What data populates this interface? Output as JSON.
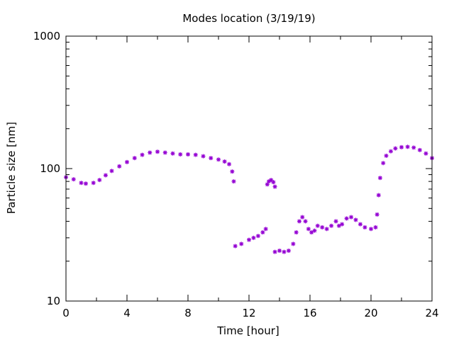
{
  "chart_data": {
    "type": "scatter",
    "title": "Modes location (3/19/19)",
    "xlabel": "Time [hour]",
    "ylabel": "Particle size [nm]",
    "xlim": [
      0,
      24
    ],
    "ylim": [
      10,
      1000
    ],
    "yscale": "log",
    "grid": false,
    "legend": "none",
    "x_ticks": [
      0,
      4,
      8,
      12,
      16,
      20,
      24
    ],
    "x_tick_labels": [
      "0",
      "4",
      "8",
      "12",
      "16",
      "20",
      "24"
    ],
    "y_ticks": [
      10,
      100,
      1000
    ],
    "y_tick_labels": [
      "10",
      "100",
      "1000"
    ],
    "marker": "asterisk",
    "color": "#9400D3",
    "series": [
      {
        "x": [
          0.0,
          0.5,
          1.0,
          1.3,
          1.8,
          2.2,
          2.6,
          3.0,
          3.5,
          4.0,
          4.5,
          5.0,
          5.5,
          6.0,
          6.5,
          7.0,
          7.5,
          8.0,
          8.5,
          9.0,
          9.5,
          10.0,
          10.4,
          10.7,
          10.9,
          11.0
        ],
        "y": [
          86,
          83,
          78,
          77,
          78,
          82,
          89,
          96,
          104,
          112,
          120,
          127,
          132,
          134,
          132,
          130,
          128,
          128,
          127,
          124,
          120,
          117,
          113,
          108,
          95,
          80
        ]
      },
      {
        "x": [
          11.1,
          11.5,
          12.0,
          12.3,
          12.6,
          12.9,
          13.1
        ],
        "y": [
          26,
          27,
          29,
          30,
          31,
          33,
          35
        ]
      },
      {
        "x": [
          13.2,
          13.3,
          13.45,
          13.6,
          13.7
        ],
        "y": [
          76,
          80,
          82,
          79,
          73
        ]
      },
      {
        "x": [
          13.7,
          14.0,
          14.3,
          14.6,
          14.9,
          15.1,
          15.3,
          15.5,
          15.7,
          15.9,
          16.1,
          16.3,
          16.5,
          16.8,
          17.1,
          17.4,
          17.7,
          17.9,
          18.1,
          18.4,
          18.7,
          19.0,
          19.3,
          19.6,
          20.0,
          20.3
        ],
        "y": [
          23.5,
          24,
          23.5,
          24,
          27,
          33,
          40,
          43,
          40,
          35,
          33,
          34,
          37,
          36,
          35,
          37,
          40,
          37,
          38,
          42,
          43,
          41,
          38,
          36,
          35,
          36
        ]
      },
      {
        "x": [
          20.4,
          20.5,
          20.6,
          20.8,
          21.0,
          21.3,
          21.6,
          22.0,
          22.4,
          22.8,
          23.2,
          23.6,
          24.0
        ],
        "y": [
          45,
          63,
          85,
          110,
          125,
          135,
          142,
          145,
          146,
          144,
          138,
          130,
          120
        ]
      }
    ]
  }
}
